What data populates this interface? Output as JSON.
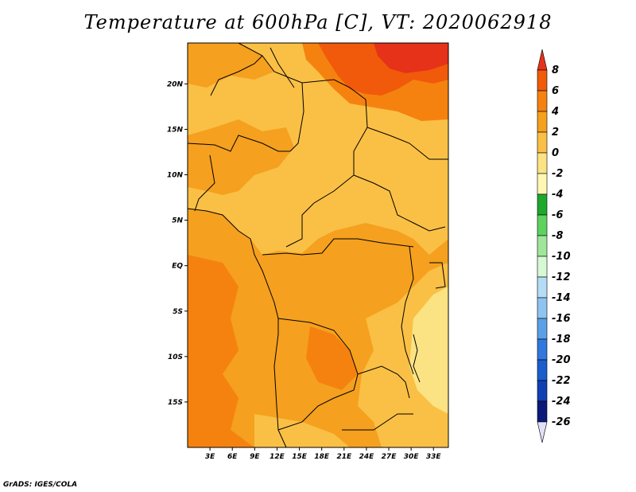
{
  "title": "Temperature at 600hPa [C], VT: 2020062918",
  "footer": "GrADS: IGES/COLA",
  "map": {
    "lon_range": [
      0,
      35
    ],
    "lat_range": [
      -20,
      24.5
    ],
    "lat_ticks": [
      "20N",
      "15N",
      "10N",
      "5N",
      "EQ",
      "5S",
      "10S",
      "15S"
    ],
    "lon_ticks": [
      "3E",
      "6E",
      "9E",
      "12E",
      "15E",
      "18E",
      "21E",
      "24E",
      "27E",
      "30E",
      "33E"
    ]
  },
  "colorbar": {
    "labels": [
      "8",
      "6",
      "4",
      "2",
      "0",
      "-2",
      "-4",
      "-6",
      "-8",
      "-10",
      "-12",
      "-14",
      "-16",
      "-18",
      "-20",
      "-22",
      "-24",
      "-26"
    ],
    "colors": [
      "#e63219",
      "#f05a0a",
      "#f5820f",
      "#f5a01e",
      "#fac045",
      "#fbe383",
      "#fff7b3",
      "#1fa82c",
      "#5dd25d",
      "#9fe69a",
      "#d7f8d4",
      "#b5dcf5",
      "#8fc3f0",
      "#5aa0e8",
      "#3078dd",
      "#1b5dcc",
      "#1040b4",
      "#0a1a78",
      "#e0e0f8"
    ]
  }
}
